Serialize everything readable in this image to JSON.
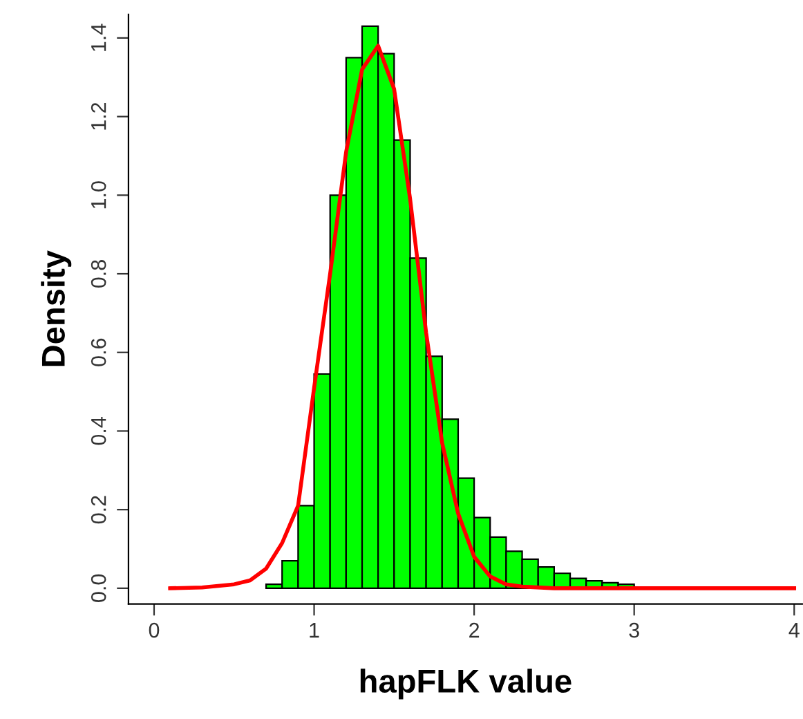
{
  "chart_data": {
    "type": "histogram",
    "xlabel": "hapFLK value",
    "ylabel": "Density",
    "bins": [
      0.7,
      0.8,
      0.9,
      1.0,
      1.1,
      1.2,
      1.3,
      1.4,
      1.5,
      1.6,
      1.7,
      1.8,
      1.9,
      2.0,
      2.1,
      2.2,
      2.3,
      2.4,
      2.5,
      2.6,
      2.7,
      2.8,
      2.9,
      3.0,
      3.1,
      3.2,
      3.3,
      3.4
    ],
    "values": [
      0.01,
      0.07,
      0.21,
      0.545,
      1.0,
      1.35,
      1.43,
      1.36,
      1.14,
      0.84,
      0.59,
      0.43,
      0.28,
      0.18,
      0.13,
      0.094,
      0.074,
      0.054,
      0.038,
      0.025,
      0.019,
      0.014,
      0.01,
      null,
      null,
      0.003,
      0.002
    ],
    "color": "#00ff00",
    "series": [
      {
        "type": "line",
        "color": "#ff0000",
        "x": [
          0.1,
          0.3,
          0.5,
          0.6,
          0.7,
          0.8,
          0.9,
          1.0,
          1.1,
          1.2,
          1.3,
          1.4,
          1.5,
          1.6,
          1.7,
          1.8,
          1.9,
          2.0,
          2.1,
          2.2,
          2.3,
          2.5,
          3.0,
          4.0
        ],
        "values": [
          0,
          0.002,
          0.01,
          0.02,
          0.05,
          0.115,
          0.21,
          0.51,
          0.8,
          1.11,
          1.32,
          1.38,
          1.27,
          0.99,
          0.65,
          0.37,
          0.19,
          0.08,
          0.03,
          0.01,
          0.004,
          0,
          0,
          0
        ]
      }
    ],
    "xlim": [
      -0.16,
      4.05
    ],
    "ylim": [
      -0.04,
      1.46
    ],
    "xticks": [
      0,
      1,
      2,
      3,
      4
    ],
    "yticks": [
      {
        "value": 0,
        "label": "0.0"
      },
      {
        "value": 0.2,
        "label": "0.2"
      },
      {
        "value": 0.4,
        "label": "0.4"
      },
      {
        "value": 0.6,
        "label": "0.6"
      },
      {
        "value": 0.8,
        "label": "0.8"
      },
      {
        "value": 1.0,
        "label": "1.0"
      },
      {
        "value": 1.2,
        "label": "1.2"
      },
      {
        "value": 1.4,
        "label": "1.4"
      }
    ],
    "grid": false,
    "marker": "none",
    "line_style": "solid"
  }
}
